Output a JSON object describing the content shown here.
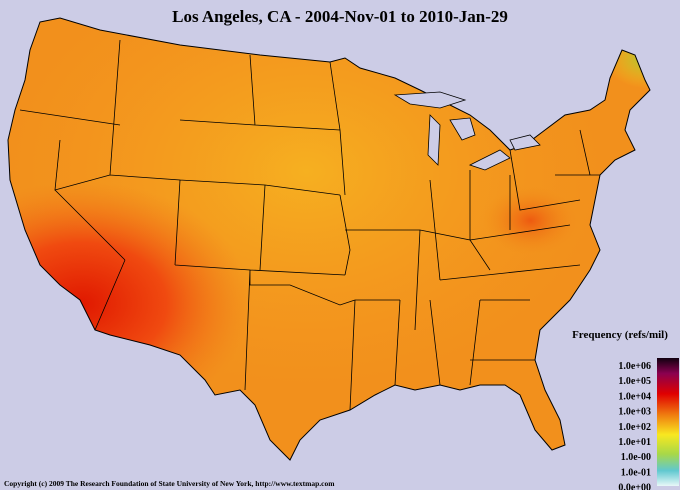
{
  "title": "Los Angeles, CA - 2004-Nov-01 to 2010-Jan-29",
  "legend": {
    "title": "Frequency (refs/mil)",
    "labels": [
      "1.0e+06",
      "1.0e+05",
      "1.0e+04",
      "1.0e+03",
      "1.0e+02",
      "1.0e+01",
      "1.0e-00",
      "1.0e-01",
      "0.0e+00"
    ]
  },
  "footer": "Copyright (c) 2009 The Research Foundation of State University of New York, http://www.textmap.com"
}
